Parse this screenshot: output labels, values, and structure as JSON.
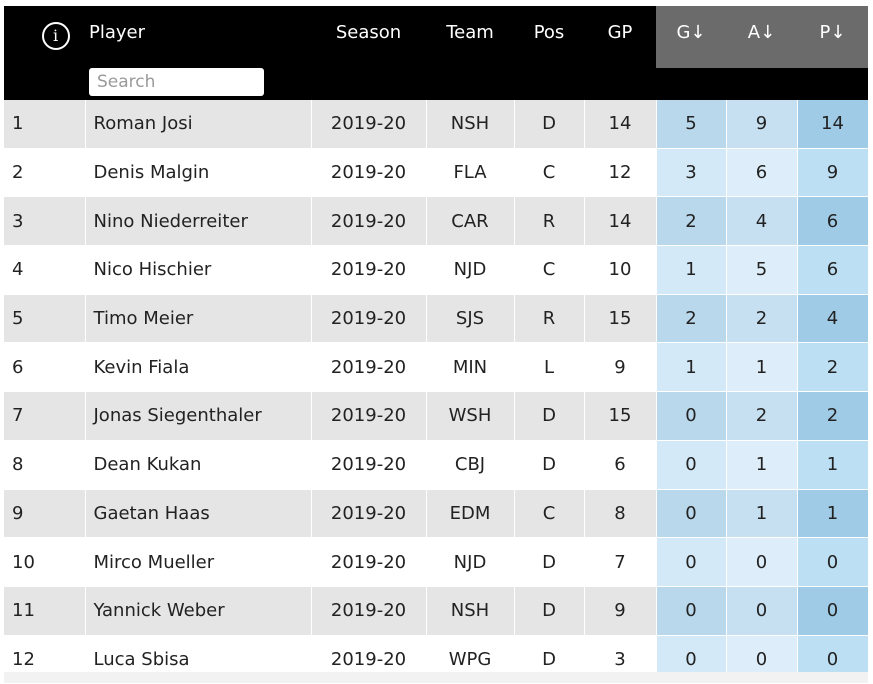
{
  "header": {
    "info_icon": "info-icon",
    "columns": {
      "player": "Player",
      "season": "Season",
      "team": "Team",
      "pos": "Pos",
      "gp": "GP",
      "g": "G↓",
      "a": "A↓",
      "p": "P↓"
    },
    "search_placeholder": "Search"
  },
  "rows": [
    {
      "rank": "1",
      "player": "Roman Josi",
      "season": "2019-20",
      "team": "NSH",
      "pos": "D",
      "gp": "14",
      "g": "5",
      "a": "9",
      "p": "14"
    },
    {
      "rank": "2",
      "player": "Denis Malgin",
      "season": "2019-20",
      "team": "FLA",
      "pos": "C",
      "gp": "12",
      "g": "3",
      "a": "6",
      "p": "9"
    },
    {
      "rank": "3",
      "player": "Nino Niederreiter",
      "season": "2019-20",
      "team": "CAR",
      "pos": "R",
      "gp": "14",
      "g": "2",
      "a": "4",
      "p": "6"
    },
    {
      "rank": "4",
      "player": "Nico Hischier",
      "season": "2019-20",
      "team": "NJD",
      "pos": "C",
      "gp": "10",
      "g": "1",
      "a": "5",
      "p": "6"
    },
    {
      "rank": "5",
      "player": "Timo Meier",
      "season": "2019-20",
      "team": "SJS",
      "pos": "R",
      "gp": "15",
      "g": "2",
      "a": "2",
      "p": "4"
    },
    {
      "rank": "6",
      "player": "Kevin Fiala",
      "season": "2019-20",
      "team": "MIN",
      "pos": "L",
      "gp": "9",
      "g": "1",
      "a": "1",
      "p": "2"
    },
    {
      "rank": "7",
      "player": "Jonas Siegenthaler",
      "season": "2019-20",
      "team": "WSH",
      "pos": "D",
      "gp": "15",
      "g": "0",
      "a": "2",
      "p": "2"
    },
    {
      "rank": "8",
      "player": "Dean Kukan",
      "season": "2019-20",
      "team": "CBJ",
      "pos": "D",
      "gp": "6",
      "g": "0",
      "a": "1",
      "p": "1"
    },
    {
      "rank": "9",
      "player": "Gaetan Haas",
      "season": "2019-20",
      "team": "EDM",
      "pos": "C",
      "gp": "8",
      "g": "0",
      "a": "1",
      "p": "1"
    },
    {
      "rank": "10",
      "player": "Mirco Mueller",
      "season": "2019-20",
      "team": "NJD",
      "pos": "D",
      "gp": "7",
      "g": "0",
      "a": "0",
      "p": "0"
    },
    {
      "rank": "11",
      "player": "Yannick Weber",
      "season": "2019-20",
      "team": "NSH",
      "pos": "D",
      "gp": "9",
      "g": "0",
      "a": "0",
      "p": "0"
    },
    {
      "rank": "12",
      "player": "Luca Sbisa",
      "season": "2019-20",
      "team": "WPG",
      "pos": "D",
      "gp": "3",
      "g": "0",
      "a": "0",
      "p": "0"
    }
  ]
}
